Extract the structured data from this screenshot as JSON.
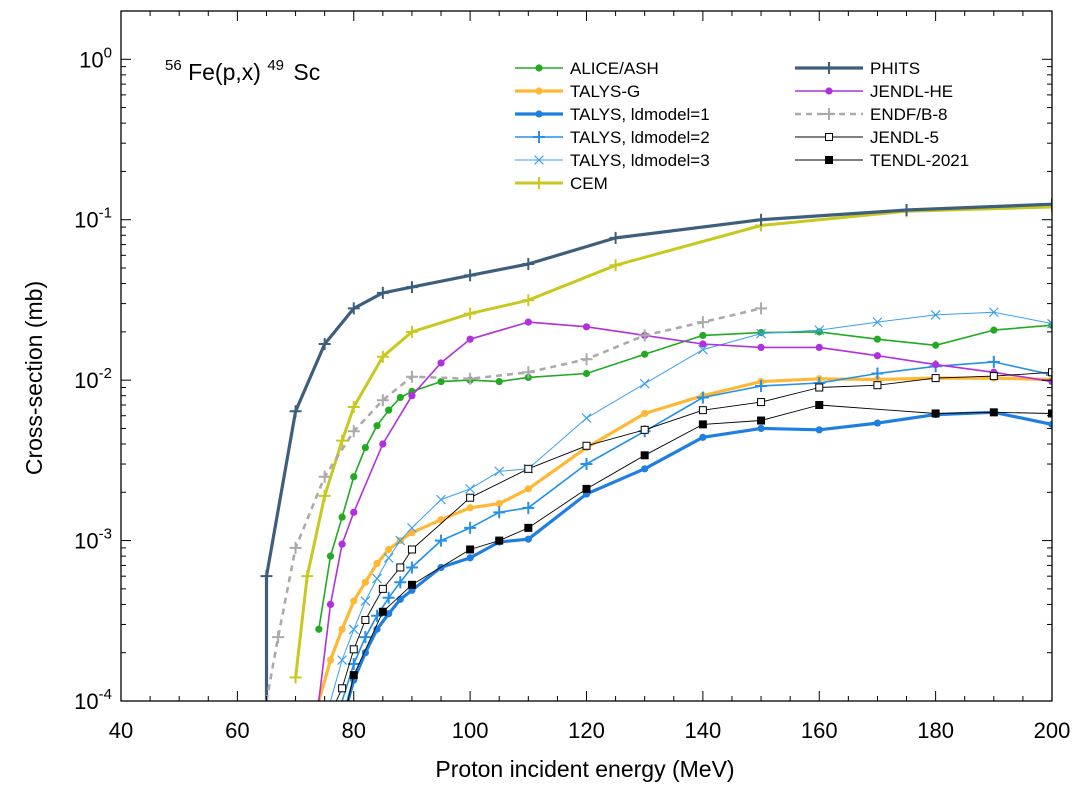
{
  "chart_data": {
    "type": "line",
    "title_parts": {
      "pre_sup": "56",
      "base": "Fe(p,x)",
      "mid_sup": "49",
      "end": "Sc"
    },
    "xlabel": "Proton incident energy (MeV)",
    "ylabel": "Cross-section (mb)",
    "xlim": [
      40,
      200
    ],
    "ylim": [
      0.0001,
      2
    ],
    "yscale": "log",
    "x_ticks": [
      "40",
      "60",
      "80",
      "100",
      "120",
      "140",
      "160",
      "180",
      "200"
    ],
    "y_ticks": [
      {
        "base": "10",
        "exp": "0"
      },
      {
        "base": "10",
        "exp": "-1"
      },
      {
        "base": "10",
        "exp": "-2"
      },
      {
        "base": "10",
        "exp": "-3"
      },
      {
        "base": "10",
        "exp": "-4"
      }
    ],
    "legend_position": "top-right, two columns",
    "series": [
      {
        "name": "ALICE/ASH",
        "color": "#22aa22",
        "marker": "dot",
        "dash": false,
        "width": 1.6,
        "x": [
          74,
          76,
          78,
          80,
          82,
          84,
          86,
          88,
          90,
          95,
          100,
          105,
          110,
          120,
          130,
          140,
          150,
          160,
          170,
          180,
          190,
          200
        ],
        "y": [
          0.00028,
          0.0008,
          0.0014,
          0.0025,
          0.0038,
          0.0052,
          0.0065,
          0.0078,
          0.0085,
          0.0098,
          0.01,
          0.0098,
          0.0104,
          0.011,
          0.0145,
          0.019,
          0.0198,
          0.02,
          0.018,
          0.0165,
          0.0205,
          0.022
        ]
      },
      {
        "name": "TALYS-G",
        "color": "#ffb833",
        "marker": "dot",
        "dash": false,
        "width": 3.2,
        "x": [
          74,
          76,
          78,
          80,
          82,
          84,
          86,
          88,
          90,
          95,
          100,
          105,
          110,
          120,
          130,
          140,
          150,
          160,
          170,
          180,
          190,
          200
        ],
        "y": [
          0.0001,
          0.00018,
          0.00028,
          0.00042,
          0.00055,
          0.00072,
          0.00088,
          0.001,
          0.00112,
          0.00135,
          0.0016,
          0.0017,
          0.0021,
          0.0038,
          0.0062,
          0.008,
          0.0098,
          0.0102,
          0.0101,
          0.0103,
          0.0103,
          0.0101
        ]
      },
      {
        "name": "TALYS, ldmodel=1",
        "color": "#1f7fe0",
        "marker": "dot",
        "dash": false,
        "width": 3.2,
        "x": [
          79,
          80,
          82,
          84,
          86,
          88,
          90,
          95,
          100,
          105,
          110,
          120,
          130,
          140,
          150,
          160,
          170,
          180,
          190,
          200
        ],
        "y": [
          0.0001,
          0.000135,
          0.0002,
          0.00028,
          0.00035,
          0.00043,
          0.00049,
          0.00068,
          0.00078,
          0.00098,
          0.00102,
          0.00195,
          0.0028,
          0.0044,
          0.005,
          0.0049,
          0.0054,
          0.0061,
          0.0063,
          0.0053
        ]
      },
      {
        "name": "TALYS, ldmodel=2",
        "color": "#2490e8",
        "marker": "plus",
        "dash": false,
        "width": 1.6,
        "x": [
          78,
          80,
          82,
          84,
          86,
          88,
          90,
          95,
          100,
          105,
          110,
          120,
          130,
          140,
          150,
          160,
          170,
          180,
          190,
          200
        ],
        "y": [
          0.0001,
          0.00017,
          0.00025,
          0.00034,
          0.00044,
          0.00055,
          0.00068,
          0.001,
          0.0012,
          0.0015,
          0.0016,
          0.003,
          0.0048,
          0.0078,
          0.0092,
          0.0096,
          0.011,
          0.0122,
          0.013,
          0.0108
        ]
      },
      {
        "name": "TALYS, ldmodel=3",
        "color": "#3aa0f0",
        "marker": "x",
        "dash": false,
        "width": 1.0,
        "x": [
          76,
          78,
          80,
          82,
          84,
          86,
          88,
          90,
          95,
          100,
          105,
          110,
          120,
          130,
          140,
          150,
          160,
          170,
          180,
          190,
          200
        ],
        "y": [
          0.0001,
          0.00018,
          0.00028,
          0.00042,
          0.00058,
          0.00078,
          0.001,
          0.0012,
          0.0018,
          0.0021,
          0.0027,
          0.0028,
          0.0058,
          0.0095,
          0.0155,
          0.0195,
          0.0205,
          0.023,
          0.0255,
          0.0265,
          0.0225
        ]
      },
      {
        "name": "CEM",
        "color": "#c8c820",
        "marker": "plus",
        "dash": false,
        "width": 3.0,
        "x": [
          70,
          72,
          75,
          78,
          80,
          85,
          90,
          100,
          110,
          125,
          150,
          175,
          200
        ],
        "y": [
          0.00014,
          0.0006,
          0.0019,
          0.0042,
          0.0068,
          0.014,
          0.02,
          0.026,
          0.0315,
          0.052,
          0.092,
          0.113,
          0.12
        ]
      },
      {
        "name": "PHITS",
        "color": "#3d5f7c",
        "marker": "plus",
        "dash": false,
        "width": 3.2,
        "x": [
          65,
          65,
          70,
          75,
          80,
          85,
          90,
          100,
          110,
          125,
          150,
          175,
          200
        ],
        "y": [
          0.0001,
          0.0006,
          0.0064,
          0.0168,
          0.028,
          0.035,
          0.038,
          0.045,
          0.053,
          0.077,
          0.1,
          0.115,
          0.125
        ]
      },
      {
        "name": "JENDL-HE",
        "color": "#b030e0",
        "marker": "dot",
        "dash": false,
        "width": 1.6,
        "x": [
          74,
          76,
          78,
          80,
          85,
          90,
          95,
          100,
          110,
          120,
          130,
          140,
          150,
          160,
          170,
          180,
          190,
          200
        ],
        "y": [
          0.0001,
          0.0004,
          0.00095,
          0.0015,
          0.004,
          0.008,
          0.0128,
          0.018,
          0.023,
          0.0215,
          0.019,
          0.0168,
          0.016,
          0.016,
          0.0142,
          0.0125,
          0.0112,
          0.0098
        ]
      },
      {
        "name": "ENDF/B-8",
        "color": "#aaaaaa",
        "marker": "plus",
        "dash": true,
        "width": 2.6,
        "x": [
          65,
          67,
          70,
          75,
          80,
          85,
          90,
          100,
          110,
          120,
          130,
          140,
          150
        ],
        "y": [
          0.0001,
          0.00025,
          0.0009,
          0.0025,
          0.0048,
          0.0075,
          0.0105,
          0.0102,
          0.0112,
          0.0135,
          0.019,
          0.023,
          0.028
        ]
      },
      {
        "name": "JENDL-5",
        "color": "#000000",
        "marker": "opensquare",
        "dash": false,
        "width": 0.9,
        "x": [
          77,
          78,
          80,
          82,
          85,
          88,
          90,
          100,
          110,
          120,
          130,
          140,
          150,
          160,
          170,
          180,
          190,
          200
        ],
        "y": [
          0.0001,
          0.00012,
          0.00021,
          0.00032,
          0.0005,
          0.00068,
          0.00088,
          0.00185,
          0.0028,
          0.0039,
          0.0049,
          0.0065,
          0.0073,
          0.009,
          0.0093,
          0.0103,
          0.0106,
          0.0112
        ]
      },
      {
        "name": "TENDL-2021",
        "color": "#000000",
        "marker": "filledsquare",
        "dash": false,
        "width": 0.9,
        "x": [
          79,
          80,
          85,
          90,
          100,
          105,
          110,
          120,
          130,
          140,
          150,
          160,
          180,
          190,
          200
        ],
        "y": [
          0.0001,
          0.000145,
          0.00036,
          0.00053,
          0.00088,
          0.001,
          0.0012,
          0.0021,
          0.0034,
          0.0053,
          0.0056,
          0.007,
          0.0062,
          0.0063,
          0.0062
        ]
      }
    ]
  }
}
